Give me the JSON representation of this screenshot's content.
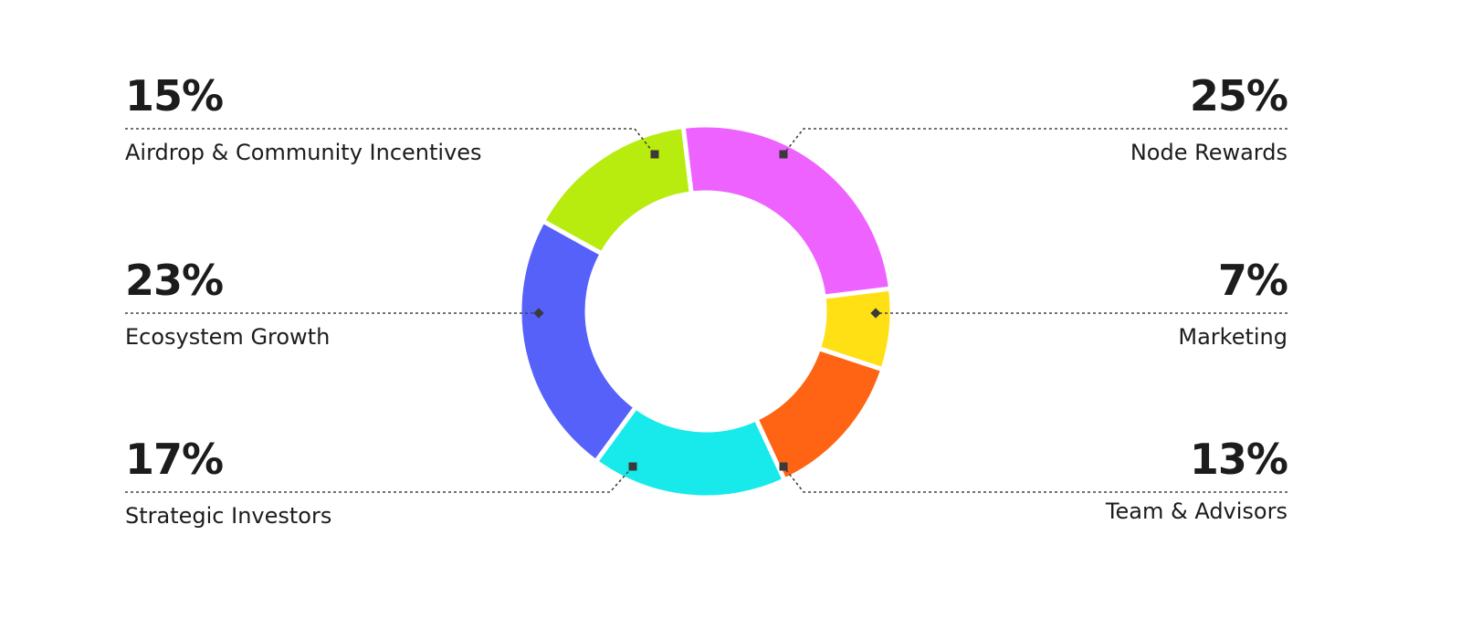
{
  "chart_data": {
    "type": "pie",
    "donut": true,
    "categories": [
      "Node Rewards",
      "Marketing",
      "Team & Advisors",
      "Strategic Investors",
      "Ecosystem Growth",
      "Airdrop & Community Incentives"
    ],
    "values": [
      25,
      7,
      13,
      17,
      23,
      15
    ],
    "value_labels": [
      "25%",
      "7%",
      "13%",
      "17%",
      "23%",
      "15%"
    ],
    "colors": [
      "#ee62ff",
      "#ffe014",
      "#ff6314",
      "#18eaec",
      "#5661fa",
      "#b8eb0e"
    ]
  }
}
